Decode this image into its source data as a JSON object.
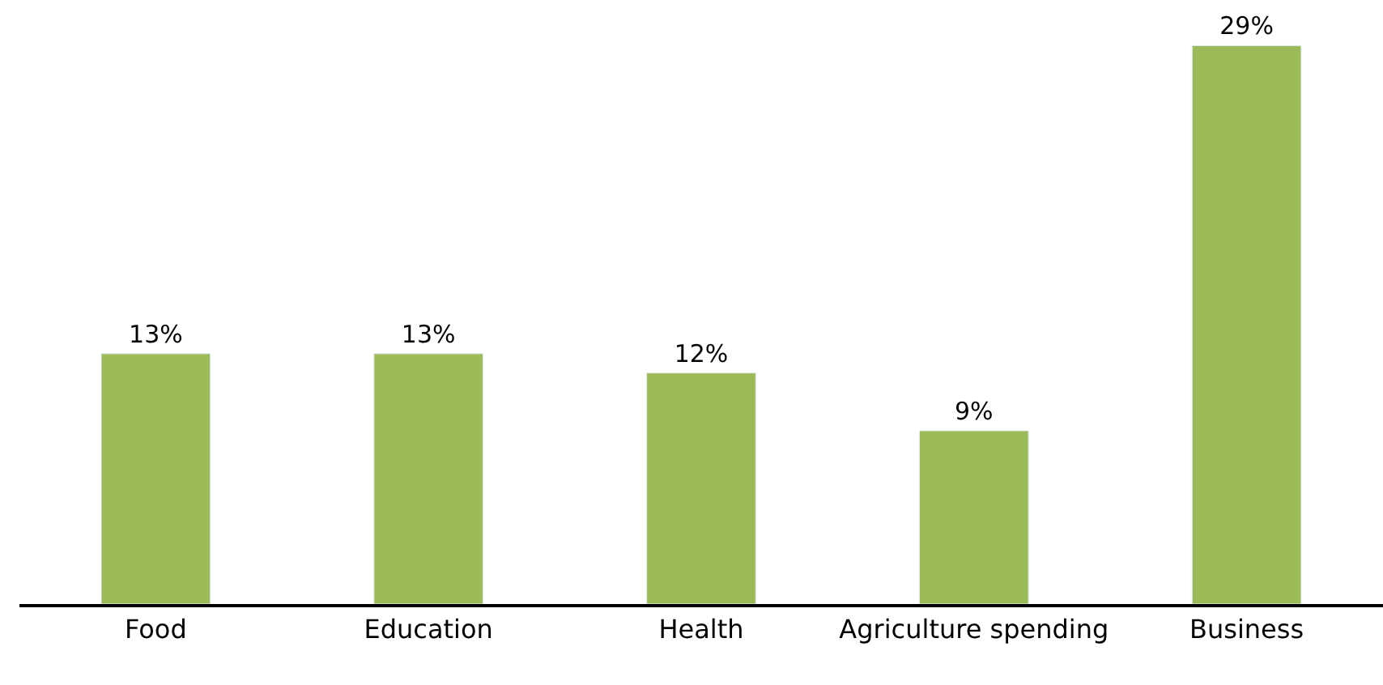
{
  "chart_data": {
    "type": "bar",
    "categories": [
      "Food",
      "Education",
      "Health",
      "Agriculture spending",
      "Business"
    ],
    "values": [
      13,
      13,
      12,
      9,
      29
    ],
    "value_labels": [
      "13%",
      "13%",
      "12%",
      "9%",
      "29%"
    ],
    "color": "#9bbb59",
    "tick_labels": "x"
  }
}
